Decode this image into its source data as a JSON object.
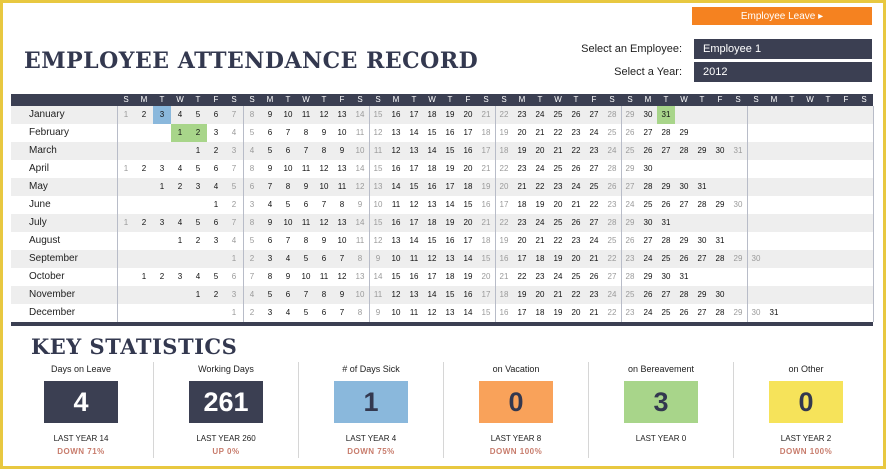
{
  "header": {
    "leave_button": "Employee Leave ▸",
    "title": "EMPLOYEE ATTENDANCE RECORD",
    "employee_label": "Select an Employee:",
    "employee_value": "Employee 1",
    "year_label": "Select a Year:",
    "year_value": "2012"
  },
  "calendar": {
    "weekday_letters": [
      "S",
      "M",
      "T",
      "W",
      "T",
      "F",
      "S",
      "S",
      "M",
      "T",
      "W",
      "T",
      "F",
      "S",
      "S",
      "M",
      "T",
      "W",
      "T",
      "F",
      "S",
      "S",
      "M",
      "T",
      "W",
      "T",
      "F",
      "S",
      "S",
      "M",
      "T",
      "W",
      "T",
      "F",
      "S",
      "S",
      "M",
      "T",
      "W",
      "T",
      "F",
      "S"
    ],
    "year": 2012,
    "months": [
      {
        "label": "January",
        "start": 0,
        "days": 31
      },
      {
        "label": "February",
        "start": 3,
        "days": 29
      },
      {
        "label": "March",
        "start": 4,
        "days": 31
      },
      {
        "label": "April",
        "start": 0,
        "days": 30
      },
      {
        "label": "May",
        "start": 2,
        "days": 31
      },
      {
        "label": "June",
        "start": 5,
        "days": 30
      },
      {
        "label": "July",
        "start": 0,
        "days": 31
      },
      {
        "label": "August",
        "start": 3,
        "days": 31
      },
      {
        "label": "September",
        "start": 6,
        "days": 30
      },
      {
        "label": "October",
        "start": 1,
        "days": 31
      },
      {
        "label": "November",
        "start": 4,
        "days": 30
      },
      {
        "label": "December",
        "start": 6,
        "days": 31
      }
    ],
    "marked_days": [
      {
        "month": 0,
        "day": 3,
        "type": "sick",
        "color": "#8ab8dc"
      },
      {
        "month": 0,
        "day": 31,
        "type": "leave",
        "color": "#a8d58a"
      },
      {
        "month": 1,
        "day": 1,
        "type": "leave",
        "color": "#a8d58a"
      },
      {
        "month": 1,
        "day": 2,
        "type": "leave",
        "color": "#a8d58a"
      }
    ]
  },
  "stats": {
    "title": "KEY STATISTICS",
    "items": [
      {
        "label": "Days on Leave",
        "value": "4",
        "last_year": "LAST YEAR 14",
        "change": "DOWN 71%",
        "bg": "#3b3f52",
        "fg": "#ffffff"
      },
      {
        "label": "Working Days",
        "value": "261",
        "last_year": "LAST YEAR 260",
        "change": "UP 0%",
        "bg": "#3b3f52",
        "fg": "#ffffff"
      },
      {
        "label": "# of Days Sick",
        "value": "1",
        "last_year": "LAST YEAR 4",
        "change": "DOWN 75%",
        "bg": "#8ab8dc",
        "fg": "#33384f"
      },
      {
        "label": "on Vacation",
        "value": "0",
        "last_year": "LAST YEAR 8",
        "change": "DOWN 100%",
        "bg": "#f9a25a",
        "fg": "#33384f"
      },
      {
        "label": "on Bereavement",
        "value": "3",
        "last_year": "LAST YEAR 0",
        "change": "",
        "bg": "#a8d58a",
        "fg": "#33384f"
      },
      {
        "label": "on Other",
        "value": "0",
        "last_year": "LAST YEAR 2",
        "change": "DOWN 100%",
        "bg": "#f6e35a",
        "fg": "#33384f"
      }
    ]
  },
  "colors": {
    "navy": "#3b3f52",
    "orange": "#f58220",
    "frame": "#e8c840",
    "row_alt": "#eeeeee"
  }
}
